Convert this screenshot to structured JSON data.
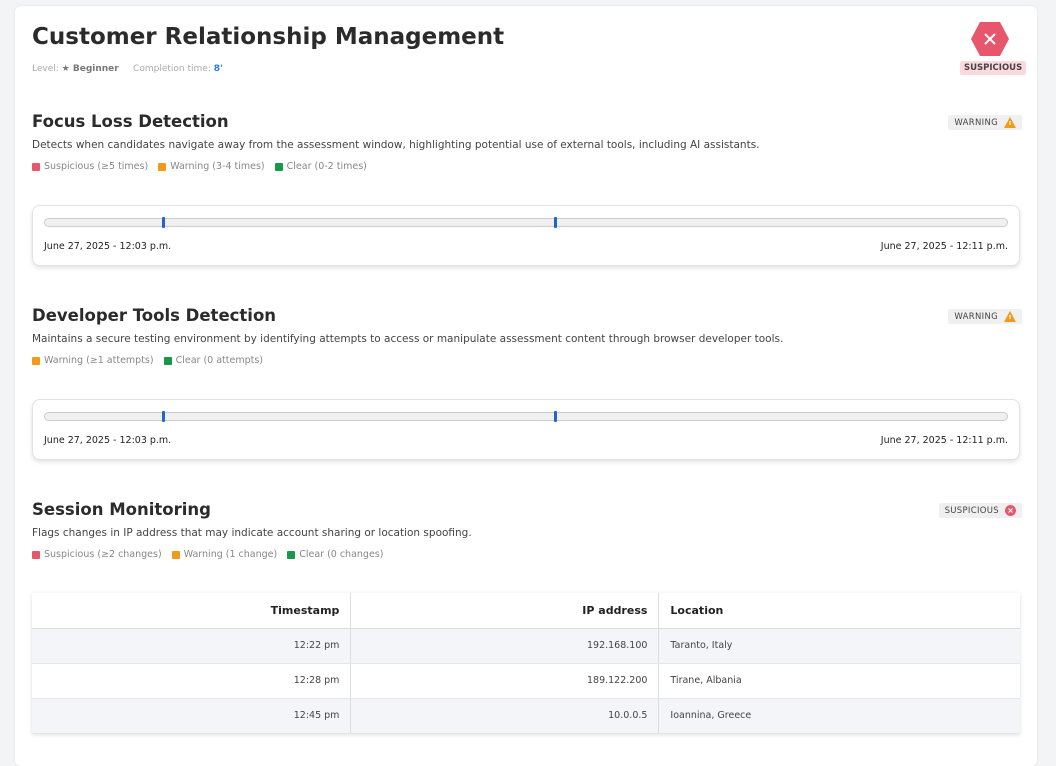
{
  "header": {
    "title": "Customer Relationship Management",
    "level_label": "Level:",
    "level_value": "★ Beginner",
    "time_label": "Completion time:",
    "time_value": "8'",
    "status": "SUSPICIOUS",
    "status_icon": "x-hexagon-icon"
  },
  "colors": {
    "suspicious": "#e8566b",
    "warning": "#f29a1a",
    "clear": "#18994a",
    "marker": "#2266cc"
  },
  "focus": {
    "title": "Focus Loss Detection",
    "description": "Detects when candidates navigate away from the assessment window, highlighting potential use of external tools, including AI assistants.",
    "badge": "WARNING",
    "legend": [
      "Suspicious (≥5 times)",
      "Warning (3-4 times)",
      "Clear (0-2 times)"
    ],
    "timeline": {
      "start": "June 27, 2025 - 12:03 p.m.",
      "end": "June 27, 2025 - 12:11 p.m.",
      "event_positions": [
        0.123,
        0.53
      ]
    }
  },
  "devtools": {
    "title": "Developer Tools Detection",
    "description": "Maintains a secure testing environment by identifying attempts to access or manipulate assessment content through browser developer tools.",
    "badge": "WARNING",
    "legend": [
      "Warning (≥1 attempts)",
      "Clear (0 attempts)"
    ],
    "timeline": {
      "start": "June 27, 2025 - 12:03 p.m.",
      "end": "June 27, 2025 - 12:11 p.m.",
      "event_positions": [
        0.123,
        0.53
      ]
    }
  },
  "session": {
    "title": "Session Monitoring",
    "description": "Flags changes in IP address that may indicate account sharing or location spoofing.",
    "badge": "SUSPICIOUS",
    "legend": [
      "Suspicious (≥2 changes)",
      "Warning (1 change)",
      "Clear (0 changes)"
    ],
    "columns": [
      "Timestamp",
      "IP address",
      "Location"
    ],
    "rows": [
      [
        "12:22 pm",
        "192.168.100",
        "Taranto, Italy"
      ],
      [
        "12:28 pm",
        "189.122.200",
        "Tirane, Albania"
      ],
      [
        "12:45 pm",
        "10.0.0.5",
        "Ioannina, Greece"
      ]
    ]
  }
}
